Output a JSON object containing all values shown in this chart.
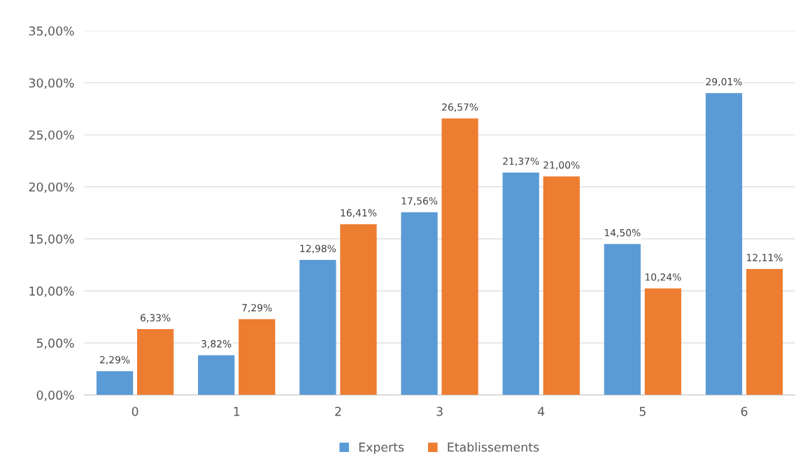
{
  "chart_data": {
    "type": "bar",
    "categories": [
      "0",
      "1",
      "2",
      "3",
      "4",
      "5",
      "6"
    ],
    "series": [
      {
        "name": "Experts",
        "color": "#5b9bd5",
        "values": [
          2.29,
          3.82,
          12.98,
          17.56,
          21.37,
          14.5,
          29.01
        ],
        "value_labels": [
          "2,29%",
          "3,82%",
          "12,98%",
          "17,56%",
          "21,37%",
          "14,50%",
          "29,01%"
        ]
      },
      {
        "name": "Etablissements",
        "color": "#ed7d31",
        "values": [
          6.33,
          7.29,
          16.41,
          26.57,
          21.0,
          10.24,
          12.11
        ],
        "value_labels": [
          "6,33%",
          "7,29%",
          "16,41%",
          "26,57%",
          "21,00%",
          "10,24%",
          "12,11%"
        ]
      }
    ],
    "ylim": [
      0,
      35
    ],
    "yticks": [
      {
        "value": 0,
        "label": "0,00%"
      },
      {
        "value": 5,
        "label": "5,00%"
      },
      {
        "value": 10,
        "label": "10,00%"
      },
      {
        "value": 15,
        "label": "15,00%"
      },
      {
        "value": 20,
        "label": "20,00%"
      },
      {
        "value": 25,
        "label": "25,00%"
      },
      {
        "value": 30,
        "label": "30,00%"
      },
      {
        "value": 35,
        "label": "35,00%"
      }
    ],
    "grid": "y",
    "legend": "bottom"
  }
}
